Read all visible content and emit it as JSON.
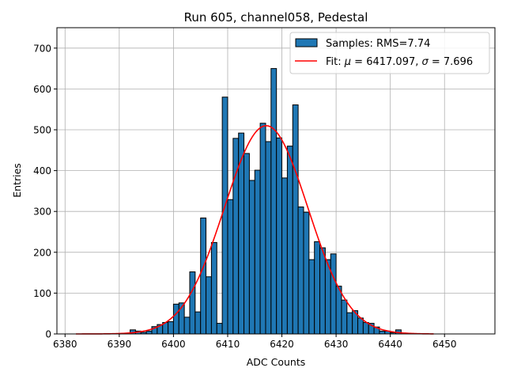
{
  "chart_data": {
    "type": "bar",
    "title": "Run 605, channel058, Pedestal",
    "xlabel": "ADC Counts",
    "ylabel": "Entries",
    "xlim": [
      6378.5,
      6459.3
    ],
    "ylim": [
      0,
      750
    ],
    "xticks": [
      6380,
      6390,
      6400,
      6410,
      6420,
      6430,
      6440,
      6450
    ],
    "yticks": [
      0,
      100,
      200,
      300,
      400,
      500,
      600,
      700
    ],
    "grid": true,
    "legend_position": "top-right",
    "bin_width": 1,
    "bins": [
      6392,
      6393,
      6394,
      6395,
      6396,
      6397,
      6398,
      6399,
      6400,
      6401,
      6402,
      6403,
      6404,
      6405,
      6406,
      6407,
      6408,
      6409,
      6410,
      6411,
      6412,
      6413,
      6414,
      6415,
      6416,
      6417,
      6418,
      6419,
      6420,
      6421,
      6422,
      6423,
      6424,
      6425,
      6426,
      6427,
      6428,
      6429,
      6430,
      6431,
      6432,
      6433,
      6434,
      6435,
      6436,
      6437,
      6438,
      6439,
      6440,
      6441
    ],
    "values": [
      10,
      7,
      4,
      7,
      18,
      23,
      28,
      30,
      73,
      76,
      41,
      152,
      54,
      284,
      140,
      224,
      26,
      580,
      329,
      479,
      492,
      442,
      376,
      401,
      516,
      471,
      650,
      480,
      382,
      460,
      561,
      311,
      298,
      182,
      226,
      211,
      182,
      196,
      117,
      83,
      52,
      57,
      39,
      28,
      26,
      17,
      7,
      7,
      3,
      10
    ],
    "series": [
      {
        "name": "Samples: RMS=7.74",
        "kind": "histogram",
        "color": "#1f77b4"
      },
      {
        "name": "Fit: μ = 6417.097, σ = 7.696",
        "kind": "gaussian-fit",
        "color": "#ff0000",
        "mu": 6417.097,
        "sigma": 7.696,
        "peak": 510,
        "x_range": [
          6382,
          6448
        ]
      }
    ],
    "legend": {
      "samples_label": "Samples: RMS=7.74",
      "fit_label_prefix": "Fit: ",
      "fit_mu": "μ",
      "fit_mu_value": " = 6417.097, ",
      "fit_sigma": "σ",
      "fit_sigma_value": " = 7.696"
    }
  }
}
